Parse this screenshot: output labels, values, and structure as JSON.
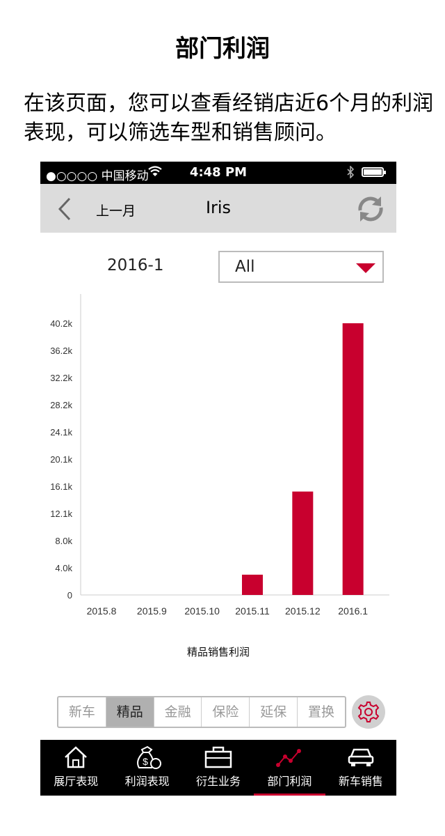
{
  "page_title": "部门利润",
  "intro_text": "在该页面，您可以查看经销店近6个月的利润表现，可以筛选车型和销售顾问。",
  "statusbar": {
    "carrier": "●○○○○ 中国移动",
    "time": "4:48 PM"
  },
  "navbar": {
    "back_label": "上一月",
    "title": "Iris"
  },
  "period": "2016-1",
  "filter": {
    "value": "All"
  },
  "colors": {
    "accent": "#c8002e",
    "navbar_bg": "#dcdcdc",
    "tabbar_bg": "#000000"
  },
  "chart_data": {
    "type": "bar",
    "categories": [
      "2015.8",
      "2015.9",
      "2015.10",
      "2015.11",
      "2015.12",
      "2016.1"
    ],
    "values": [
      0,
      0,
      0,
      3000,
      15300,
      40200
    ],
    "y_ticks": [
      "0",
      "4.0k",
      "8.0k",
      "12.1k",
      "16.1k",
      "20.1k",
      "24.1k",
      "28.2k",
      "32.2k",
      "36.2k",
      "40.2k"
    ],
    "y_tick_values": [
      0,
      4020,
      8040,
      12060,
      16080,
      20100,
      24120,
      28140,
      32160,
      36180,
      40200
    ],
    "ylim": [
      0,
      40200
    ],
    "xlabel": "精品销售利润",
    "bar_color": "#c8002e",
    "grid": false
  },
  "segments": [
    {
      "label": "新车",
      "active": false
    },
    {
      "label": "精品",
      "active": true
    },
    {
      "label": "金融",
      "active": false
    },
    {
      "label": "保险",
      "active": false
    },
    {
      "label": "延保",
      "active": false
    },
    {
      "label": "置换",
      "active": false
    }
  ],
  "tabs": [
    {
      "label": "展厅表现",
      "icon": "house-icon",
      "active": false
    },
    {
      "label": "利润表现",
      "icon": "money-bag-icon",
      "active": false
    },
    {
      "label": "衍生业务",
      "icon": "briefcase-icon",
      "active": false
    },
    {
      "label": "部门利润",
      "icon": "line-chart-icon",
      "active": true
    },
    {
      "label": "新车销售",
      "icon": "car-icon",
      "active": false
    }
  ]
}
